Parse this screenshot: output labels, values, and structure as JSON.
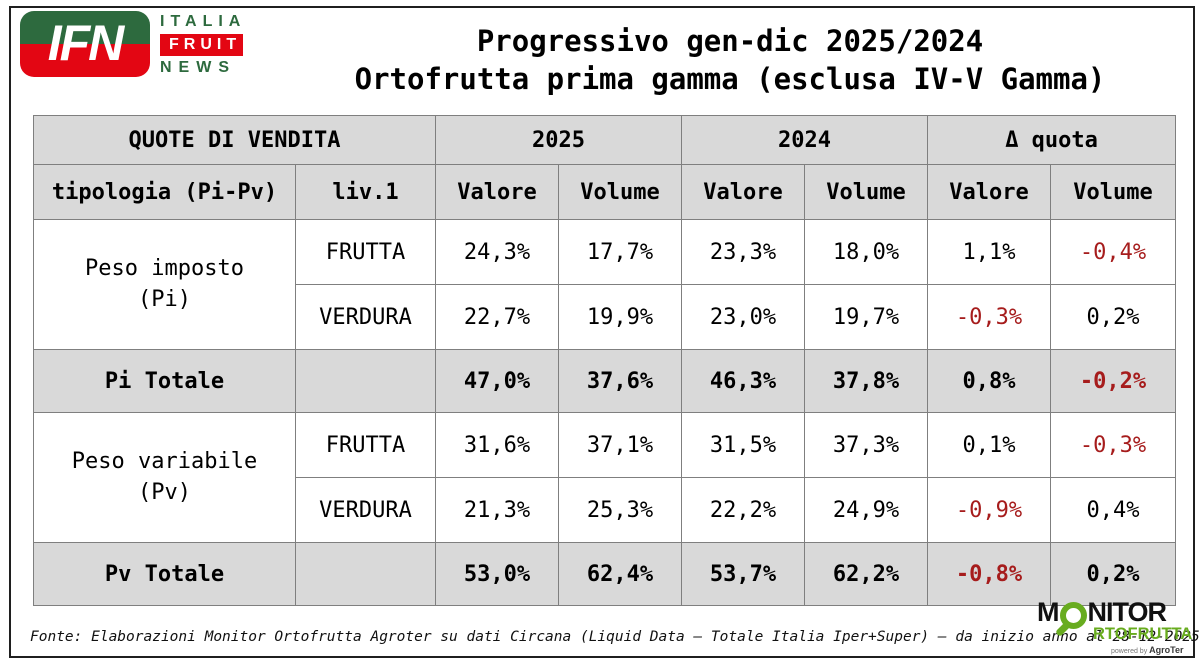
{
  "logo_ifn": {
    "monogram": "IFN",
    "line1": "ITALIA",
    "line2": "FRUIT",
    "line3": "NEWS",
    "green": "#2d6a3e",
    "red": "#e30613"
  },
  "title": {
    "line1": "Progressivo gen-dic 2025/2024",
    "line2": "Ortofrutta prima gamma (esclusa IV-V Gamma)"
  },
  "table": {
    "header_row1": [
      "QUOTE DI VENDITA",
      "2025",
      "2024",
      "Δ quota"
    ],
    "header_row2": [
      "tipologia (Pi-Pv)",
      "liv.1",
      "Valore",
      "Volume",
      "Valore",
      "Volume",
      "Valore",
      "Volume"
    ],
    "groups": [
      {
        "label_line1": "Peso imposto",
        "label_line2": "(Pi)",
        "rows": [
          {
            "liv1": "FRUTTA",
            "values": [
              "24,3%",
              "17,7%",
              "23,3%",
              "18,0%",
              "1,1%",
              "-0,4%"
            ]
          },
          {
            "liv1": "VERDURA",
            "values": [
              "22,7%",
              "19,9%",
              "23,0%",
              "19,7%",
              "-0,3%",
              "0,2%"
            ]
          }
        ],
        "total": {
          "label": "Pi Totale",
          "values": [
            "47,0%",
            "37,6%",
            "46,3%",
            "37,8%",
            "0,8%",
            "-0,2%"
          ]
        }
      },
      {
        "label_line1": "Peso variabile",
        "label_line2": "(Pv)",
        "rows": [
          {
            "liv1": "FRUTTA",
            "values": [
              "31,6%",
              "37,1%",
              "31,5%",
              "37,3%",
              "0,1%",
              "-0,3%"
            ]
          },
          {
            "liv1": "VERDURA",
            "values": [
              "21,3%",
              "25,3%",
              "22,2%",
              "24,9%",
              "-0,9%",
              "0,4%"
            ]
          }
        ],
        "total": {
          "label": "Pv Totale",
          "values": [
            "53,0%",
            "62,4%",
            "53,7%",
            "62,2%",
            "-0,8%",
            "0,2%"
          ]
        }
      }
    ],
    "colors": {
      "header_bg": "#d9d9d9",
      "total_bg": "#d9d9d9",
      "grid": "#7f7f7f",
      "negative": "#a61c1c",
      "text": "#000000"
    }
  },
  "footer": {
    "source": "Fonte: Elaborazioni Monitor Ortofrutta Agroter su dati Circana (Liquid Data – Totale Italia Iper+Super) –  da inizio anno al 28-12-2025"
  },
  "logo_monitor": {
    "top_left": "M",
    "top_right": "NITOR",
    "bottom": "RTOFRUTTA",
    "powered_prefix": "powered by",
    "powered_brand": "AgroTer",
    "green": "#68ac1f",
    "black": "#111111"
  },
  "chart_data": {
    "type": "table",
    "title": "Progressivo gen-dic 2025/2024 — Ortofrutta prima gamma (esclusa IV-V Gamma)",
    "columns": [
      "tipologia (Pi-Pv)",
      "liv.1",
      "2025 Valore",
      "2025 Volume",
      "2024 Valore",
      "2024 Volume",
      "Δ quota Valore",
      "Δ quota Volume"
    ],
    "rows": [
      [
        "Peso imposto (Pi)",
        "FRUTTA",
        "24,3%",
        "17,7%",
        "23,3%",
        "18,0%",
        "1,1%",
        "-0,4%"
      ],
      [
        "Peso imposto (Pi)",
        "VERDURA",
        "22,7%",
        "19,9%",
        "23,0%",
        "19,7%",
        "-0,3%",
        "0,2%"
      ],
      [
        "Pi Totale",
        "",
        "47,0%",
        "37,6%",
        "46,3%",
        "37,8%",
        "0,8%",
        "-0,2%"
      ],
      [
        "Peso variabile (Pv)",
        "FRUTTA",
        "31,6%",
        "37,1%",
        "31,5%",
        "37,3%",
        "0,1%",
        "-0,3%"
      ],
      [
        "Peso variabile (Pv)",
        "VERDURA",
        "21,3%",
        "25,3%",
        "22,2%",
        "24,9%",
        "-0,9%",
        "0,4%"
      ],
      [
        "Pv Totale",
        "",
        "53,0%",
        "62,4%",
        "53,7%",
        "62,2%",
        "-0,8%",
        "0,2%"
      ]
    ],
    "notes": "Negative values rendered in dark red"
  }
}
